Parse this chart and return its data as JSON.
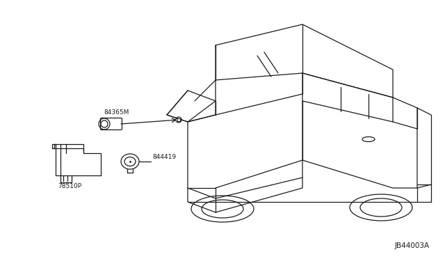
{
  "bg_color": "#ffffff",
  "line_color": "#1a1a1a",
  "fig_width": 6.4,
  "fig_height": 3.72,
  "dpi": 100,
  "diagram_id": "JB44003A",
  "labels": {
    "part1_id": "84365M",
    "part2_id": "78510P",
    "part3_id": "844419"
  }
}
